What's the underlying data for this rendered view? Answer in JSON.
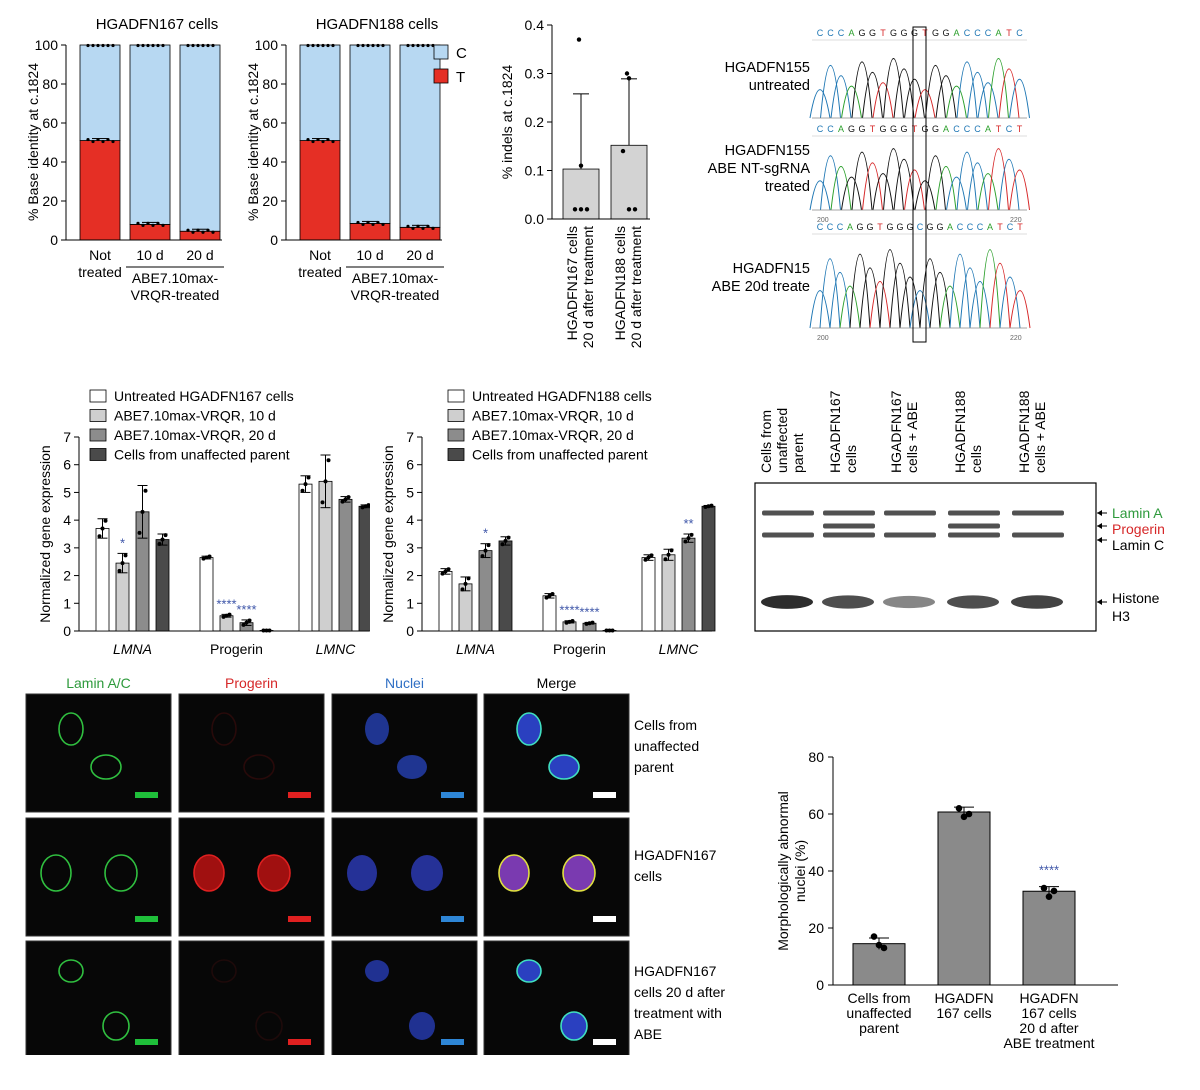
{
  "panel_a": {
    "ylabel": "% Base identity at c.1824",
    "legend": [
      {
        "label": "C",
        "color": "#b7d8f2"
      },
      {
        "label": "T",
        "color": "#e52f25"
      }
    ],
    "charts": [
      {
        "title": "HGADFN167 cells",
        "categories": [
          "Not treated",
          "10 d",
          "20 d"
        ],
        "t_values": [
          51,
          8,
          4.5
        ],
        "c_values": [
          49,
          92,
          95.5
        ],
        "group_label": "ABE7.10max-VRQR-treated"
      },
      {
        "title": "HGADFN188 cells",
        "categories": [
          "Not treated",
          "10 d",
          "20 d"
        ],
        "t_values": [
          51,
          8.5,
          6.5
        ],
        "c_values": [
          49,
          91.5,
          93.5
        ],
        "group_label": "ABE7.10max-VRQR-treated"
      }
    ]
  },
  "chart_data": [
    {
      "type": "bar",
      "title": "HGADFN167 cells",
      "categories": [
        "Not treated",
        "10 d",
        "20 d"
      ],
      "series": [
        {
          "name": "T",
          "values": [
            51,
            8,
            4.5
          ]
        },
        {
          "name": "C",
          "values": [
            49,
            92,
            95.5
          ]
        }
      ],
      "stacked": true,
      "ylabel": "% Base identity at c.1824",
      "ylim": [
        0,
        100
      ],
      "yticks": [
        0,
        20,
        40,
        60,
        80,
        100
      ]
    },
    {
      "type": "bar",
      "title": "HGADFN188 cells",
      "categories": [
        "Not treated",
        "10 d",
        "20 d"
      ],
      "series": [
        {
          "name": "T",
          "values": [
            51,
            8.5,
            6.5
          ]
        },
        {
          "name": "C",
          "values": [
            49,
            91.5,
            93.5
          ]
        }
      ],
      "stacked": true,
      "ylabel": "% Base identity at c.1824",
      "ylim": [
        0,
        100
      ],
      "yticks": [
        0,
        20,
        40,
        60,
        80,
        100
      ]
    },
    {
      "type": "bar",
      "categories": [
        "HGADFN167 cells 20 d after treatment",
        "HGADFN188 cells 20 d after treatment"
      ],
      "values": [
        0.103,
        0.152
      ],
      "errors": [
        0.155,
        0.137
      ],
      "points": [
        [
          0.37,
          0.11,
          0.02,
          0.02,
          0.02
        ],
        [
          0.3,
          0.29,
          0.14,
          0.02,
          0.02
        ]
      ],
      "ylabel": "% indels at c.1824",
      "ylim": [
        0,
        0.4
      ],
      "yticks": [
        0.0,
        0.1,
        0.2,
        0.3,
        0.4
      ]
    },
    {
      "type": "bar",
      "categories": [
        "LMNA",
        "Progerin",
        "LMNC"
      ],
      "series": [
        {
          "name": "Untreated HGADFN167 cells",
          "values": [
            3.7,
            2.65,
            5.3
          ],
          "errors": [
            0.35,
            0.05,
            0.3
          ]
        },
        {
          "name": "ABE7.10max-VRQR, 10 d",
          "values": [
            2.45,
            0.55,
            5.4
          ],
          "errors": [
            0.35,
            0.05,
            0.95
          ]
        },
        {
          "name": "ABE7.10max-VRQR, 20 d",
          "values": [
            4.3,
            0.3,
            4.75
          ],
          "errors": [
            0.95,
            0.1,
            0.1
          ]
        },
        {
          "name": "Cells from unaffected parent",
          "values": [
            3.3,
            0.02,
            4.5
          ],
          "errors": [
            0.2,
            0.0,
            0.05
          ]
        }
      ],
      "significance": [
        [
          "",
          "*",
          "",
          ""
        ],
        [
          "",
          "****",
          "****",
          ""
        ],
        [
          "",
          "",
          "",
          ""
        ]
      ],
      "ylabel": "Normalized gene expression",
      "ylim": [
        0,
        7
      ],
      "yticks": [
        0,
        1,
        2,
        3,
        4,
        5,
        6,
        7
      ]
    },
    {
      "type": "bar",
      "categories": [
        "LMNA",
        "Progerin",
        "LMNC"
      ],
      "series": [
        {
          "name": "Untreated HGADFN188 cells",
          "values": [
            2.15,
            1.27,
            2.65
          ],
          "errors": [
            0.1,
            0.08,
            0.1
          ]
        },
        {
          "name": "ABE7.10max-VRQR, 10 d",
          "values": [
            1.7,
            0.33,
            2.75
          ],
          "errors": [
            0.25,
            0.04,
            0.2
          ]
        },
        {
          "name": "ABE7.10max-VRQR, 20 d",
          "values": [
            2.9,
            0.28,
            3.35
          ],
          "errors": [
            0.25,
            0.03,
            0.15
          ]
        },
        {
          "name": "Cells from unaffected parent",
          "values": [
            3.25,
            0.02,
            4.5
          ],
          "errors": [
            0.15,
            0.0,
            0.03
          ]
        }
      ],
      "significance": [
        [
          "",
          "",
          "*",
          ""
        ],
        [
          "",
          "****",
          "****",
          ""
        ],
        [
          "",
          "",
          "**",
          ""
        ]
      ],
      "ylabel": "Normalized gene expression",
      "ylim": [
        0,
        7
      ],
      "yticks": [
        0,
        1,
        2,
        3,
        4,
        5,
        6,
        7
      ]
    },
    {
      "type": "bar",
      "categories": [
        "Cells from unaffected parent",
        "HGADFN 167 cells",
        "HGADFN 167 cells 20 d after ABE treatment"
      ],
      "values": [
        14.5,
        60.7,
        32.9
      ],
      "errors": [
        2.0,
        1.7,
        1.6
      ],
      "points": [
        [
          17,
          13,
          14
        ],
        [
          62,
          60,
          59
        ],
        [
          34,
          33,
          31
        ]
      ],
      "significance": [
        "",
        "",
        "****"
      ],
      "ylabel": "Morphologically abnormal nuclei (%)",
      "ylim": [
        0,
        80
      ],
      "yticks": [
        0,
        20,
        40,
        60,
        80
      ]
    }
  ],
  "panel_b": {
    "ylabel": "% indels at c.1824",
    "categories": [
      "HGADFN167 cells 20 d after treatment",
      "HGADFN188 cells 20 d after treatment"
    ]
  },
  "panel_c": {
    "labels": [
      {
        "line1": "HGADFN155",
        "line2": "untreated",
        "line3": ""
      },
      {
        "line1": "HGADFN155",
        "line2": "ABE NT-sgRNA",
        "line3": "treated"
      },
      {
        "line1": "HGADFN15",
        "line2": "ABE 20d treate",
        "line3": ""
      }
    ],
    "sequences": [
      "CCCAGGTGGGTGGACCCATC",
      "CCAGGTGGGTGGACCCATCT",
      "CCCAGGTGGGCGGACCCATCT"
    ],
    "axis_ticks": [
      [
        "",
        ""
      ],
      [
        "200",
        "220"
      ],
      [
        "200",
        "220"
      ]
    ],
    "base_colors": {
      "A": "#2ca02c",
      "C": "#1f77b4",
      "G": "#111111",
      "T": "#d62728"
    }
  },
  "panel_d": {
    "legend": [
      "Untreated HGADFN167 cells",
      "ABE7.10max-VRQR, 10 d",
      "ABE7.10max-VRQR, 20 d",
      "Cells from unaffected parent"
    ],
    "colors": [
      "#ffffff",
      "#cfcfcf",
      "#8c8c8c",
      "#4a4a4a"
    ],
    "sig_color": "#3d55a8"
  },
  "panel_e": {
    "legend": [
      "Untreated HGADFN188 cells",
      "ABE7.10max-VRQR, 10 d",
      "ABE7.10max-VRQR, 20 d",
      "Cells from unaffected parent"
    ]
  },
  "panel_f": {
    "lanes": [
      "Cells from unaffected parent",
      "HGADFN167 cells",
      "HGADFN167 cells + ABE",
      "HGADFN188 cells",
      "HGADFN188 cells + ABE"
    ],
    "band_labels": [
      {
        "text": "Lamin A",
        "color": "#2e9a3c"
      },
      {
        "text": "Progerin",
        "color": "#d62728"
      },
      {
        "text": "Lamin C",
        "color": "#000000"
      },
      {
        "text": "Histone",
        "color": "#000000"
      },
      {
        "text": "H3",
        "color": "#000000"
      }
    ]
  },
  "panel_g": {
    "columns": [
      {
        "label": "Lamin A/C",
        "color": "#2e9a3c",
        "bar": "#1fbf3a"
      },
      {
        "label": "Progerin",
        "color": "#d62728",
        "bar": "#e02020"
      },
      {
        "label": "Nuclei",
        "color": "#2f6fc4",
        "bar": "#2e86d6"
      },
      {
        "label": "Merge",
        "color": "#000000",
        "bar": "#ffffff"
      }
    ],
    "rows": [
      [
        "Cells from",
        "unaffected",
        "parent",
        ""
      ],
      [
        "HGADFN167",
        "cells",
        "",
        ""
      ],
      [
        "HGADFN167",
        "cells 20 d after",
        "treatment with",
        "ABE"
      ]
    ]
  },
  "panel_h": {
    "ylabel": "Morphologically abnormal nuclei (%)",
    "category_lines": [
      [
        "Cells from",
        "unaffected",
        "parent",
        ""
      ],
      [
        "HGADFN",
        "167 cells",
        "",
        ""
      ],
      [
        "HGADFN",
        "167 cells",
        "20 d after",
        "ABE treatment"
      ]
    ]
  }
}
